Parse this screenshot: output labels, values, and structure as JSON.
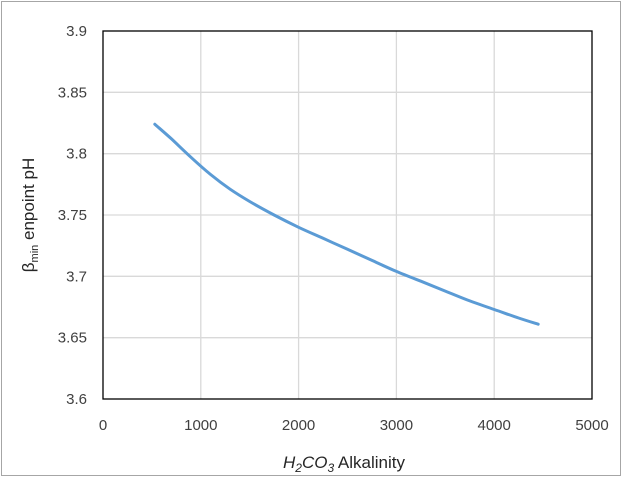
{
  "chart_data": {
    "type": "line",
    "title": "",
    "xlabel": {
      "h": "H",
      "sub1": "2",
      "co": "CO",
      "sub2": "3",
      "rest": " Alkalinity"
    },
    "ylabel": {
      "beta": "β",
      "sub": "min",
      "rest": " enpoint pH"
    },
    "xlim": [
      0,
      5000
    ],
    "ylim": [
      3.6,
      3.9
    ],
    "x_ticks": [
      "0",
      "1000",
      "2000",
      "3000",
      "4000",
      "5000"
    ],
    "y_ticks": [
      "3.6",
      "3.65",
      "3.7",
      "3.75",
      "3.8",
      "3.85",
      "3.9"
    ],
    "x_tick_values": [
      0,
      1000,
      2000,
      3000,
      4000,
      5000
    ],
    "y_tick_values": [
      3.6,
      3.65,
      3.7,
      3.75,
      3.8,
      3.85,
      3.9
    ],
    "grid": true,
    "legend": "none",
    "series": [
      {
        "color": "#5b9bd5",
        "x": [
          530,
          700,
          900,
          1100,
          1300,
          1500,
          1750,
          2000,
          2250,
          2500,
          2750,
          3000,
          3250,
          3500,
          3750,
          4000,
          4250,
          4450
        ],
        "y": [
          3.824,
          3.812,
          3.797,
          3.783,
          3.771,
          3.761,
          3.75,
          3.74,
          3.731,
          3.722,
          3.713,
          3.704,
          3.696,
          3.688,
          3.68,
          3.673,
          3.666,
          3.661
        ]
      }
    ],
    "colors": {
      "grid": "#d9d9d9",
      "axis": "#000000",
      "frame": "#a6a6a6"
    }
  }
}
